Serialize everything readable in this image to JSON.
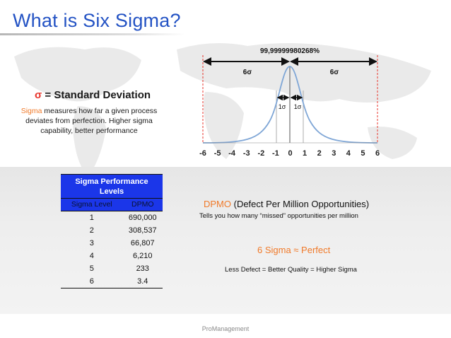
{
  "title": "What is Six Sigma?",
  "std_dev": {
    "symbol": "σ",
    "heading_rest": " = Standard Deviation",
    "highlight_word": "Sigma",
    "description_rest": " measures how far a given process deviates from perfection. Higher sigma capability, better performance"
  },
  "bell_curve": {
    "percent_label": "99,99999980268%",
    "left_span_label": "6σ",
    "right_span_label": "6σ",
    "inner_left_label": "1σ",
    "inner_right_label": "1σ",
    "x_ticks": [
      "-6",
      "-5",
      "-4",
      "-3",
      "-2",
      "-1",
      "0",
      "1",
      "2",
      "3",
      "4",
      "5",
      "6"
    ],
    "curve_color": "#7fa6d6",
    "limit_line_color": "#e8352c"
  },
  "table": {
    "header": "Sigma Performance Levels",
    "col1": "Sigma Level",
    "col2": "DPMO",
    "rows": [
      {
        "level": "1",
        "dpmo": "690,000"
      },
      {
        "level": "2",
        "dpmo": "308,537"
      },
      {
        "level": "3",
        "dpmo": "66,807"
      },
      {
        "level": "4",
        "dpmo": "6,210"
      },
      {
        "level": "5",
        "dpmo": "233"
      },
      {
        "level": "6",
        "dpmo": "3.4"
      }
    ],
    "header_color": "#1b36e9"
  },
  "dpmo": {
    "acronym": "DPMO",
    "expansion": " (Defect Per Million Opportunities)",
    "description": "Tells you how many “missed” opportunities per million"
  },
  "perfect_label": "6 Sigma ≈ Perfect",
  "less_defect": "Less Defect = Better Quality = Higher Sigma",
  "footer": "ProManagement",
  "colors": {
    "title": "#2453c4",
    "accent_orange": "#f07a2a",
    "accent_red": "#e8352c"
  }
}
